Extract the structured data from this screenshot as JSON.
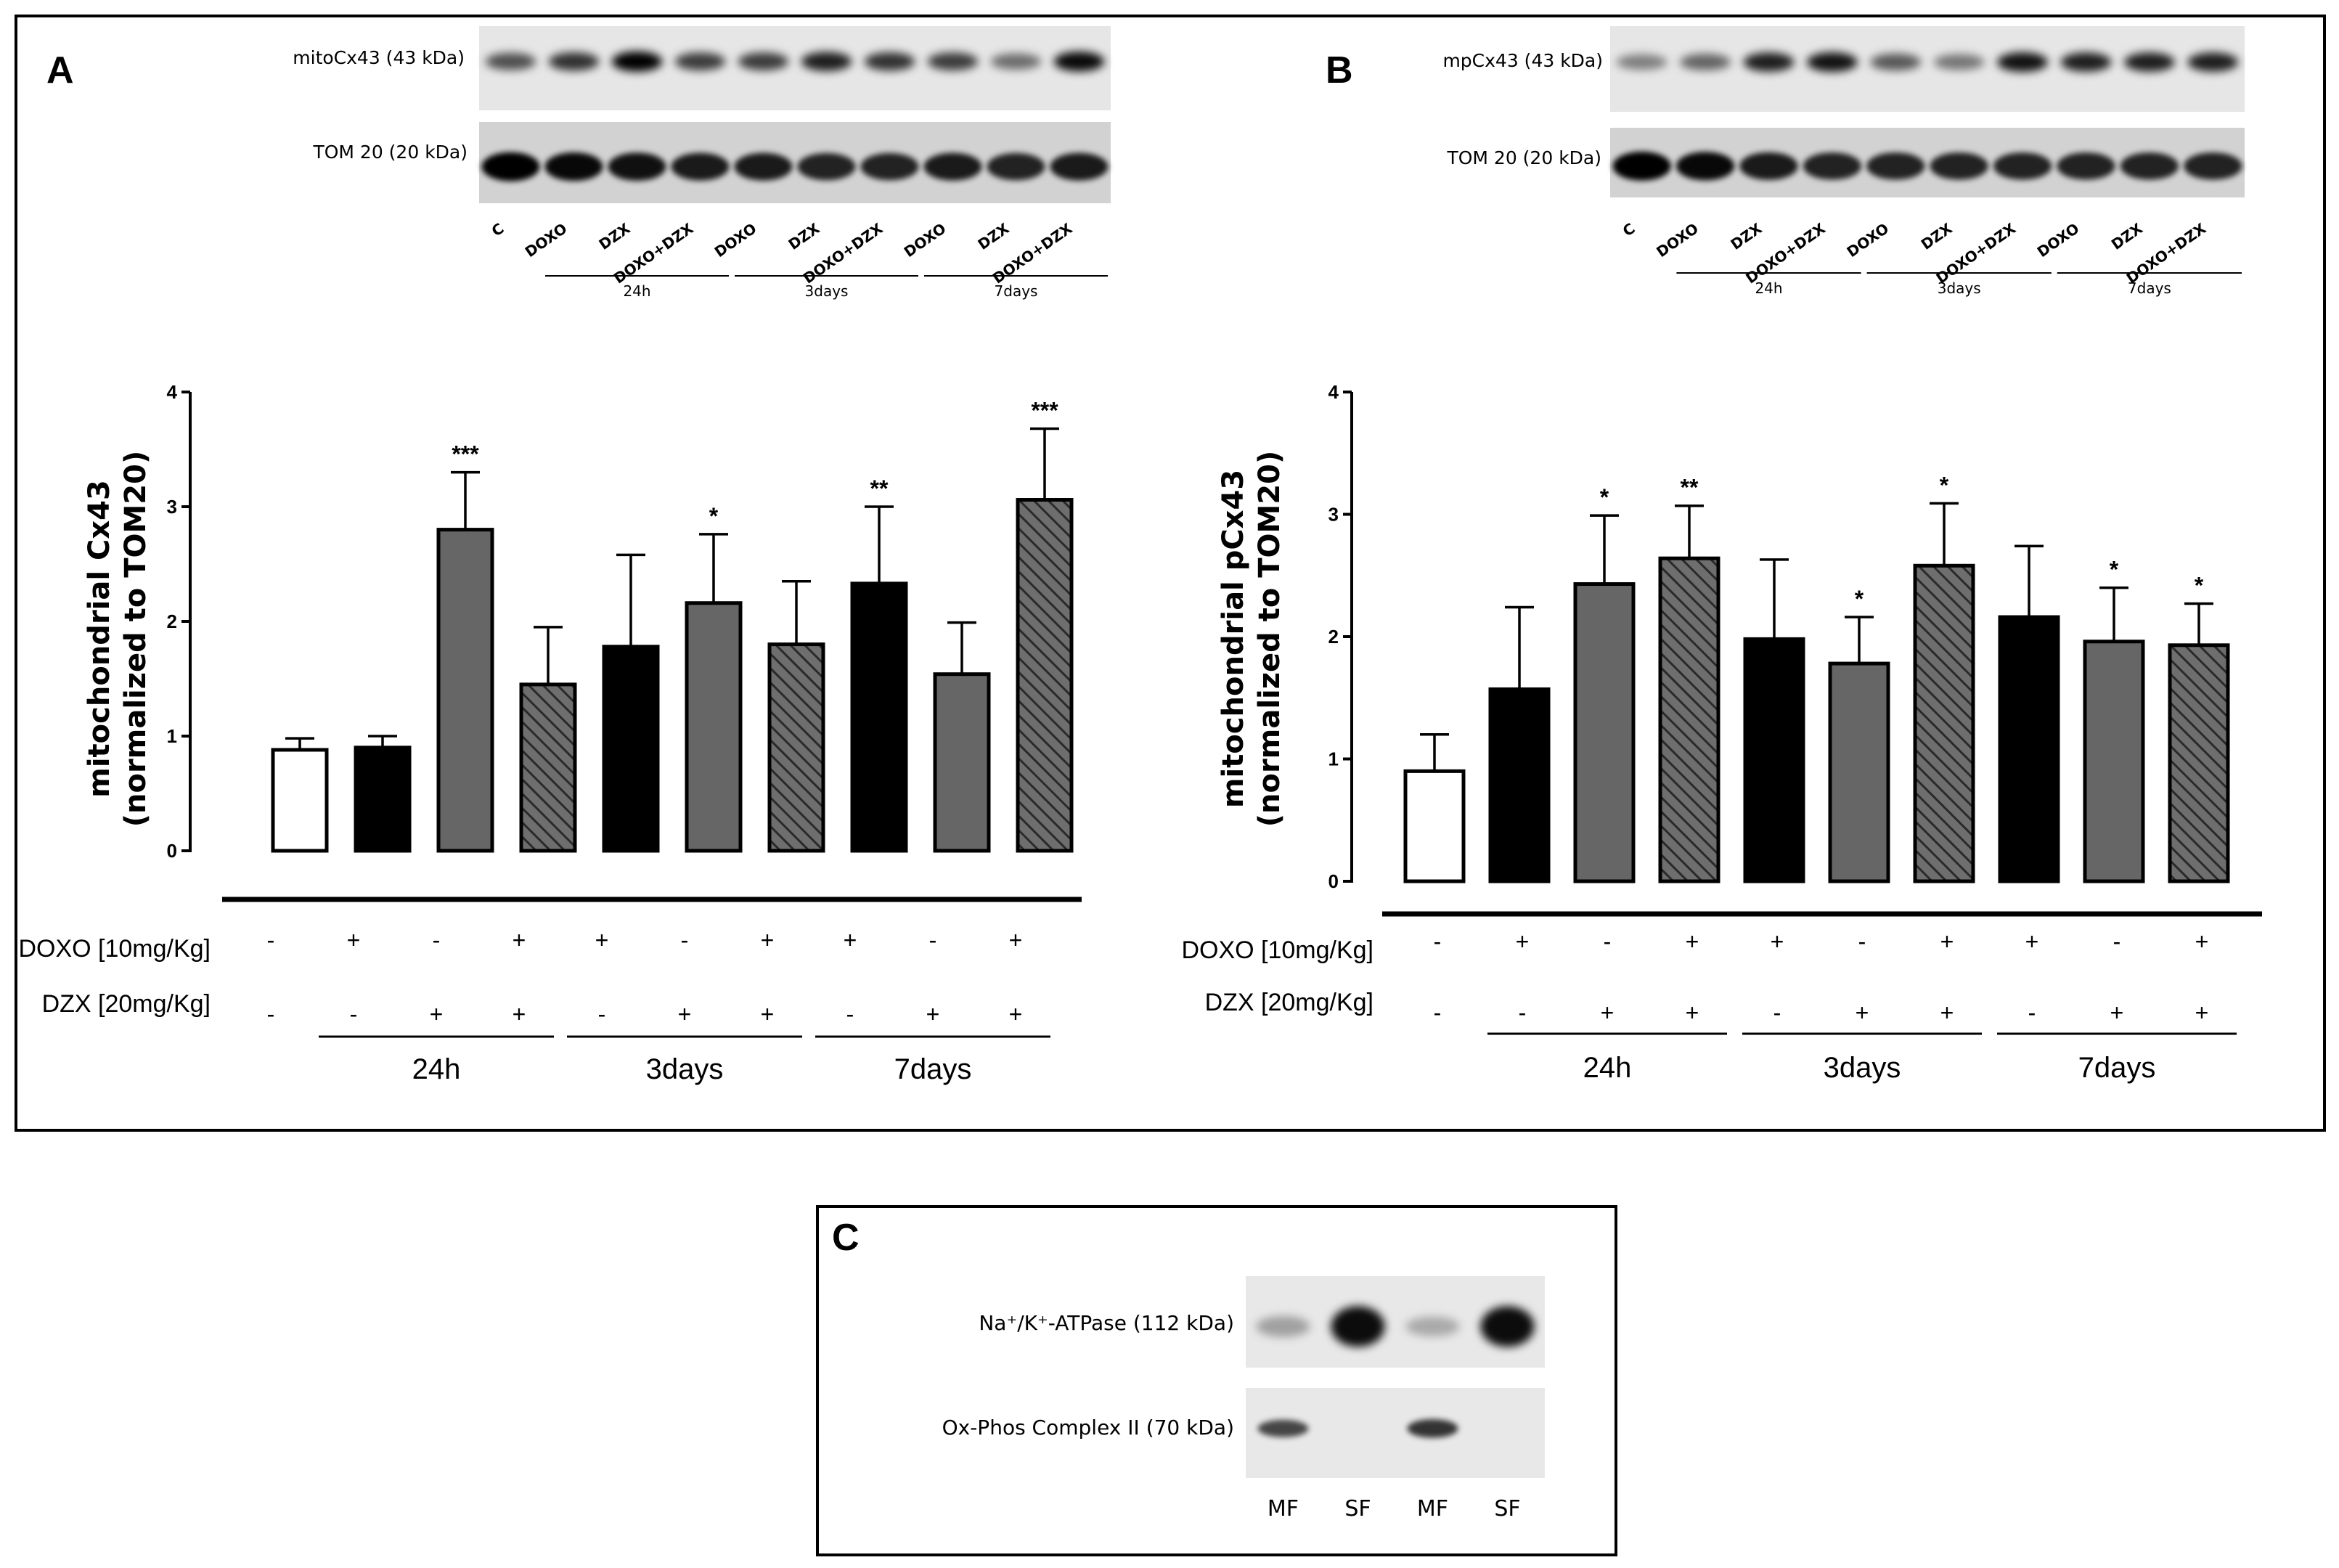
{
  "panels": {
    "A": {
      "letter": "A",
      "blot": {
        "top_label": "mitoCx43 (43 kDa)",
        "bottom_label": "TOM 20 (20 kDa)",
        "lanes": [
          "C",
          "DOXO",
          "DZX",
          "DOXO+DZX",
          "DOXO",
          "DZX",
          "DOXO+DZX",
          "DOXO",
          "DZX",
          "DOXO+DZX"
        ],
        "time_labels": [
          "24h",
          "3days",
          "7days"
        ],
        "band_intensity_top": [
          0.6,
          0.75,
          1.0,
          0.7,
          0.7,
          0.85,
          0.75,
          0.7,
          0.45,
          0.95
        ],
        "band_intensity_bottom": [
          1.0,
          0.95,
          0.9,
          0.85,
          0.85,
          0.8,
          0.8,
          0.85,
          0.8,
          0.85
        ]
      },
      "chart_data": {
        "type": "bar",
        "ylabel_line1": "mitochondrial Cx43",
        "ylabel_line2": "(normalized to TOM20)",
        "ylim": [
          0,
          4
        ],
        "yticks": [
          "0",
          "1",
          "2",
          "3",
          "4"
        ],
        "values": [
          0.88,
          0.9,
          2.8,
          1.45,
          1.78,
          2.16,
          1.8,
          2.33,
          1.54,
          3.06
        ],
        "errors": [
          0.1,
          0.1,
          0.5,
          0.5,
          0.8,
          0.6,
          0.55,
          0.67,
          0.45,
          0.62
        ],
        "fills": [
          "white",
          "black",
          "gray",
          "hatch",
          "black",
          "gray",
          "hatch",
          "black",
          "gray",
          "hatch"
        ],
        "significance": [
          "",
          "",
          "***",
          "",
          "",
          "*",
          "",
          "**",
          "",
          "***"
        ]
      },
      "table": {
        "doxo_label": "DOXO [10mg/Kg]",
        "dzx_label": "DZX [20mg/Kg]",
        "doxo": [
          "-",
          "+",
          "-",
          "+",
          "+",
          "-",
          "+",
          "+",
          "-",
          "+"
        ],
        "dzx": [
          "-",
          "-",
          "+",
          "+",
          "-",
          "+",
          "+",
          "-",
          "+",
          "+"
        ],
        "groups": [
          "24h",
          "3days",
          "7days"
        ]
      }
    },
    "B": {
      "letter": "B",
      "blot": {
        "top_label": "mpCx43 (43 kDa)",
        "bottom_label": "TOM 20 (20 kDa)",
        "lanes": [
          "C",
          "DOXO",
          "DZX",
          "DOXO+DZX",
          "DOXO",
          "DZX",
          "DOXO+DZX",
          "DOXO",
          "DZX",
          "DOXO+DZX"
        ],
        "time_labels": [
          "24h",
          "3days",
          "7days"
        ],
        "band_intensity_top": [
          0.35,
          0.5,
          0.85,
          0.9,
          0.55,
          0.4,
          0.9,
          0.85,
          0.85,
          0.85
        ],
        "band_intensity_bottom": [
          1.0,
          0.95,
          0.85,
          0.8,
          0.8,
          0.8,
          0.8,
          0.8,
          0.8,
          0.8
        ]
      },
      "chart_data": {
        "type": "bar",
        "ylabel_line1": "mitochondrial pCx43",
        "ylabel_line2": "(normalized to TOM20)",
        "ylim": [
          0,
          4
        ],
        "yticks": [
          "0",
          "1",
          "2",
          "3",
          "4"
        ],
        "values": [
          0.9,
          1.57,
          2.43,
          2.64,
          1.98,
          1.78,
          2.58,
          2.16,
          1.96,
          1.93
        ],
        "errors": [
          0.3,
          0.67,
          0.56,
          0.43,
          0.65,
          0.38,
          0.51,
          0.58,
          0.44,
          0.34
        ],
        "fills": [
          "white",
          "black",
          "gray",
          "hatch",
          "black",
          "gray",
          "hatch",
          "black",
          "gray",
          "hatch"
        ],
        "significance": [
          "",
          "",
          "*",
          "**",
          "",
          "*",
          "*",
          "",
          "*",
          "*"
        ]
      },
      "table": {
        "doxo_label": "DOXO [10mg/Kg]",
        "dzx_label": "DZX [20mg/Kg]",
        "doxo": [
          "-",
          "+",
          "-",
          "+",
          "+",
          "-",
          "+",
          "+",
          "-",
          "+"
        ],
        "dzx": [
          "-",
          "-",
          "+",
          "+",
          "-",
          "+",
          "+",
          "-",
          "+",
          "+"
        ],
        "groups": [
          "24h",
          "3days",
          "7days"
        ]
      }
    },
    "C": {
      "letter": "C",
      "top_label": "Na⁺/K⁺-ATPase  (112 kDa)",
      "bottom_label": "Ox-Phos Complex II  (70  kDa)",
      "lanes": [
        "MF",
        "SF",
        "MF",
        "SF"
      ],
      "band_intensity_top": [
        0.25,
        1.0,
        0.2,
        1.0
      ],
      "band_intensity_bottom": [
        0.75,
        0.0,
        0.85,
        0.0
      ]
    }
  }
}
